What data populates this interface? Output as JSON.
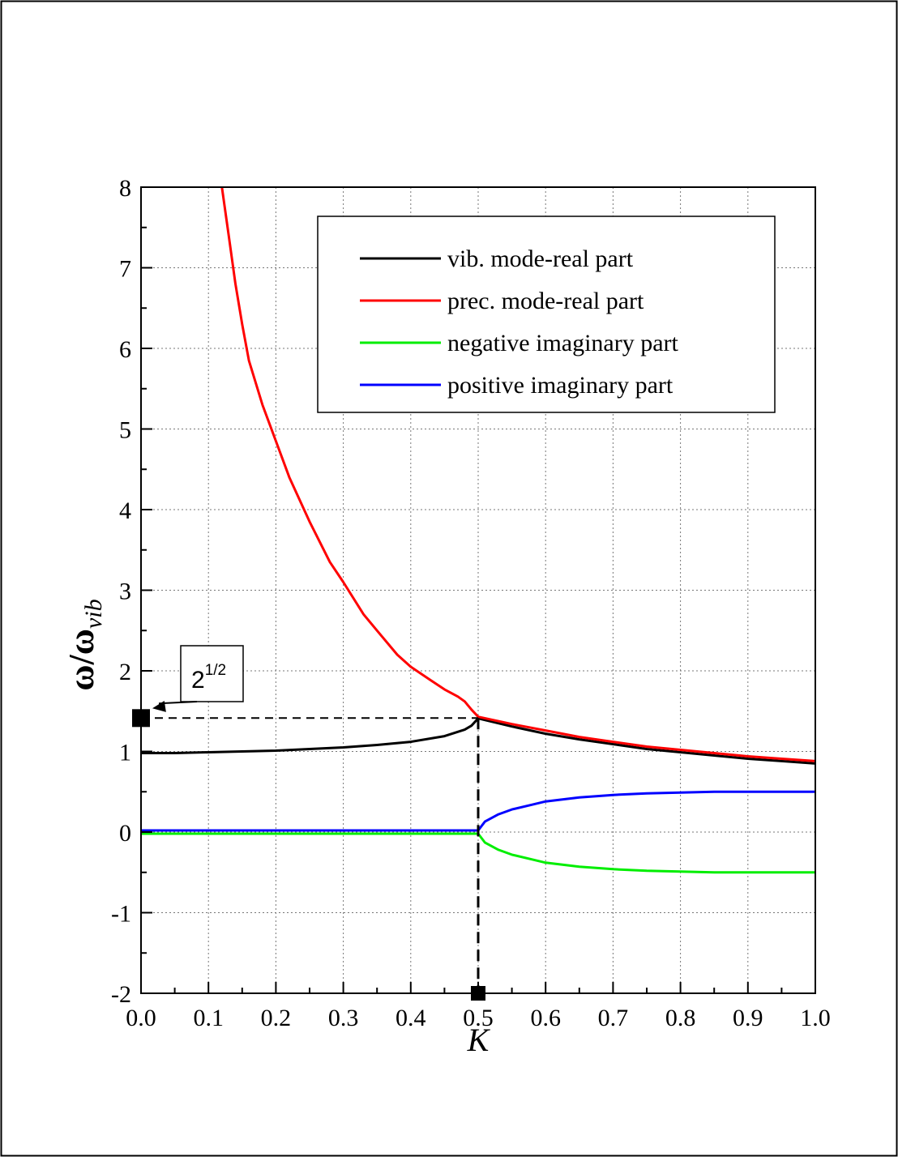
{
  "chart_data": {
    "type": "line",
    "xlabel": "K",
    "ylabel": {
      "main": "ω/ω",
      "sub": "vib"
    },
    "xlim": [
      0.0,
      1.0
    ],
    "ylim": [
      -2,
      8
    ],
    "xticks": [
      "0.0",
      "0.1",
      "0.2",
      "0.3",
      "0.4",
      "0.5",
      "0.6",
      "0.7",
      "0.8",
      "0.9",
      "1.0"
    ],
    "yticks": [
      "-2",
      "-1",
      "0",
      "1",
      "2",
      "3",
      "4",
      "5",
      "6",
      "7",
      "8"
    ],
    "grid": true,
    "legend_position": "top-right",
    "series": [
      {
        "name": "vib. mode-real part",
        "color": "#000000",
        "x": [
          0.0,
          0.05,
          0.1,
          0.15,
          0.2,
          0.25,
          0.3,
          0.35,
          0.4,
          0.45,
          0.48,
          0.49,
          0.5,
          0.55,
          0.6,
          0.65,
          0.7,
          0.75,
          0.8,
          0.85,
          0.9,
          0.95,
          1.0
        ],
        "y": [
          0.98,
          0.98,
          0.99,
          1.0,
          1.01,
          1.03,
          1.05,
          1.08,
          1.12,
          1.19,
          1.27,
          1.32,
          1.41,
          1.31,
          1.22,
          1.15,
          1.09,
          1.03,
          0.99,
          0.95,
          0.91,
          0.88,
          0.85
        ]
      },
      {
        "name": "prec. mode-real part",
        "color": "#ff0000",
        "x": [
          0.12,
          0.13,
          0.14,
          0.15,
          0.16,
          0.18,
          0.2,
          0.22,
          0.25,
          0.28,
          0.3,
          0.33,
          0.35,
          0.38,
          0.4,
          0.43,
          0.45,
          0.47,
          0.48,
          0.49,
          0.5,
          0.55,
          0.6,
          0.65,
          0.7,
          0.75,
          0.8,
          0.85,
          0.9,
          0.95,
          1.0
        ],
        "y": [
          8.0,
          7.4,
          6.8,
          6.3,
          5.85,
          5.3,
          4.85,
          4.4,
          3.85,
          3.35,
          3.1,
          2.7,
          2.5,
          2.2,
          2.05,
          1.88,
          1.77,
          1.68,
          1.62,
          1.52,
          1.43,
          1.34,
          1.26,
          1.18,
          1.12,
          1.06,
          1.02,
          0.98,
          0.94,
          0.91,
          0.88
        ]
      },
      {
        "name": "negative imaginary part",
        "color": "#00ee00",
        "x": [
          0.0,
          0.1,
          0.2,
          0.3,
          0.4,
          0.5,
          0.51,
          0.53,
          0.55,
          0.58,
          0.6,
          0.65,
          0.7,
          0.75,
          0.8,
          0.85,
          0.9,
          0.95,
          1.0
        ],
        "y": [
          -0.02,
          -0.02,
          -0.02,
          -0.02,
          -0.02,
          -0.02,
          -0.13,
          -0.22,
          -0.28,
          -0.34,
          -0.38,
          -0.43,
          -0.46,
          -0.48,
          -0.49,
          -0.5,
          -0.5,
          -0.5,
          -0.5
        ]
      },
      {
        "name": "positive imaginary part",
        "color": "#0000ff",
        "x": [
          0.0,
          0.1,
          0.2,
          0.3,
          0.4,
          0.5,
          0.51,
          0.53,
          0.55,
          0.58,
          0.6,
          0.65,
          0.7,
          0.75,
          0.8,
          0.85,
          0.9,
          0.95,
          1.0
        ],
        "y": [
          0.02,
          0.02,
          0.02,
          0.02,
          0.02,
          0.02,
          0.13,
          0.22,
          0.28,
          0.34,
          0.38,
          0.43,
          0.46,
          0.48,
          0.49,
          0.5,
          0.5,
          0.5,
          0.5
        ]
      }
    ],
    "annotations": [
      {
        "text_base": "2",
        "text_sup": "1/2",
        "point": [
          0.0,
          1.414
        ]
      },
      {
        "reference_point": [
          0.5,
          -2
        ]
      }
    ]
  }
}
